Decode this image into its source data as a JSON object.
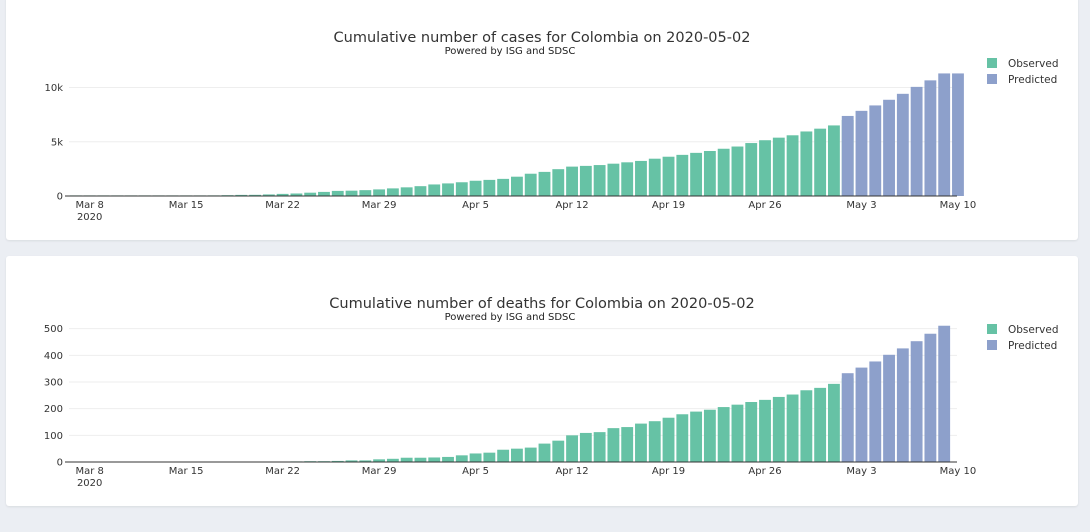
{
  "colors": {
    "observed": "#66c2a5",
    "predicted": "#8da0cb",
    "grid": "#eeeeee",
    "axis": "#333333"
  },
  "chart_data": [
    {
      "type": "bar",
      "id": "cases",
      "title": "Cumulative number of cases for Colombia on 2020-05-02",
      "subtitle": "Powered by ISG and SDSC",
      "xlabel": "",
      "ylabel": "",
      "ylim": [
        0,
        11800
      ],
      "yticks": [
        0,
        5000,
        10000
      ],
      "ytick_labels": [
        "0",
        "5k",
        "10k"
      ],
      "xtick_labels": [
        {
          "date": "2020-03-08",
          "label": "Mar 8",
          "sub": "2020"
        },
        {
          "date": "2020-03-15",
          "label": "Mar 15"
        },
        {
          "date": "2020-03-22",
          "label": "Mar 22"
        },
        {
          "date": "2020-03-29",
          "label": "Mar 29"
        },
        {
          "date": "2020-04-05",
          "label": "Apr 5"
        },
        {
          "date": "2020-04-12",
          "label": "Apr 12"
        },
        {
          "date": "2020-04-19",
          "label": "Apr 19"
        },
        {
          "date": "2020-04-26",
          "label": "Apr 26"
        },
        {
          "date": "2020-05-03",
          "label": "May 3"
        },
        {
          "date": "2020-05-10",
          "label": "May 10"
        }
      ],
      "grid": true,
      "legend_position": "top-right",
      "series": [
        {
          "name": "Observed",
          "start_date": "2020-03-07",
          "values": [
            1,
            1,
            3,
            3,
            3,
            9,
            13,
            16,
            24,
            45,
            57,
            75,
            102,
            108,
            145,
            196,
            231,
            306,
            378,
            470,
            491,
            539,
            608,
            702,
            798,
            906,
            1065,
            1161,
            1267,
            1406,
            1485,
            1579,
            1780,
            2054,
            2223,
            2473,
            2709,
            2776,
            2852,
            2979,
            3105,
            3233,
            3439,
            3621,
            3792,
            3977,
            4149,
            4356,
            4561,
            4881,
            5142,
            5379,
            5597,
            5949,
            6207,
            6507,
            7006
          ]
        },
        {
          "name": "Predicted",
          "start_date": "2020-05-02",
          "values": [
            7380,
            7850,
            8350,
            8870,
            9420,
            10060,
            10660,
            11300,
            11300
          ]
        }
      ]
    },
    {
      "type": "bar",
      "id": "deaths",
      "title": "Cumulative number of deaths for Colombia on 2020-05-02",
      "subtitle": "Powered by ISG and SDSC",
      "xlabel": "",
      "ylabel": "",
      "ylim": [
        0,
        525
      ],
      "yticks": [
        0,
        100,
        200,
        300,
        400,
        500
      ],
      "ytick_labels": [
        "0",
        "100",
        "200",
        "300",
        "400",
        "500"
      ],
      "xtick_labels": [
        {
          "date": "2020-03-08",
          "label": "Mar 8",
          "sub": "2020"
        },
        {
          "date": "2020-03-15",
          "label": "Mar 15"
        },
        {
          "date": "2020-03-22",
          "label": "Mar 22"
        },
        {
          "date": "2020-03-29",
          "label": "Mar 29"
        },
        {
          "date": "2020-04-05",
          "label": "Apr 5"
        },
        {
          "date": "2020-04-12",
          "label": "Apr 12"
        },
        {
          "date": "2020-04-19",
          "label": "Apr 19"
        },
        {
          "date": "2020-04-26",
          "label": "Apr 26"
        },
        {
          "date": "2020-05-03",
          "label": "May 3"
        },
        {
          "date": "2020-05-10",
          "label": "May 10"
        }
      ],
      "grid": true,
      "legend_position": "top-right",
      "series": [
        {
          "name": "Observed",
          "start_date": "2020-03-07",
          "values": [
            0,
            0,
            0,
            0,
            0,
            0,
            0,
            0,
            0,
            0,
            0,
            0,
            0,
            0,
            0,
            0,
            2,
            3,
            3,
            4,
            6,
            6,
            10,
            12,
            16,
            16,
            17,
            19,
            25,
            32,
            35,
            46,
            50,
            54,
            69,
            80,
            100,
            109,
            112,
            127,
            131,
            144,
            153,
            166,
            179,
            189,
            196,
            206,
            215,
            225,
            233,
            244,
            253,
            269,
            278,
            293,
            314
          ]
        },
        {
          "name": "Predicted",
          "start_date": "2020-05-02",
          "values": [
            333,
            354,
            377,
            402,
            426,
            453,
            481,
            511
          ]
        }
      ]
    }
  ]
}
